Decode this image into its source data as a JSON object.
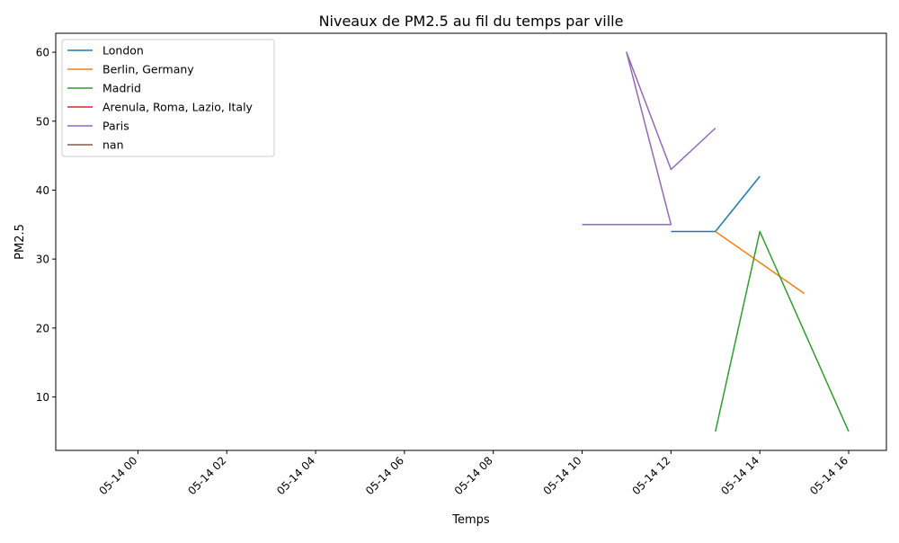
{
  "chart_data": {
    "type": "line",
    "title": "Niveaux de PM2.5 au fil du temps par ville",
    "xlabel": "Temps",
    "ylabel": "PM2.5",
    "x_unit": "hour of 05-14",
    "xlim": [
      -1.85,
      16.85
    ],
    "ylim": [
      2.25,
      62.75
    ],
    "x_ticks": [
      {
        "value": 0,
        "label": "05-14 00"
      },
      {
        "value": 2,
        "label": "05-14 02"
      },
      {
        "value": 4,
        "label": "05-14 04"
      },
      {
        "value": 6,
        "label": "05-14 06"
      },
      {
        "value": 8,
        "label": "05-14 08"
      },
      {
        "value": 10,
        "label": "05-14 10"
      },
      {
        "value": 12,
        "label": "05-14 12"
      },
      {
        "value": 14,
        "label": "05-14 14"
      },
      {
        "value": 16,
        "label": "05-14 16"
      }
    ],
    "y_ticks": [
      {
        "value": 10,
        "label": "10"
      },
      {
        "value": 20,
        "label": "20"
      },
      {
        "value": 30,
        "label": "30"
      },
      {
        "value": 40,
        "label": "40"
      },
      {
        "value": 50,
        "label": "50"
      },
      {
        "value": 60,
        "label": "60"
      }
    ],
    "grid": false,
    "legend_position": "top-left",
    "series": [
      {
        "name": "London",
        "color": "#1f77b4",
        "points": [
          [
            12,
            34
          ],
          [
            13,
            34
          ],
          [
            14,
            42
          ]
        ]
      },
      {
        "name": "Berlin, Germany",
        "color": "#ff7f0e",
        "points": [
          [
            13,
            34
          ],
          [
            15,
            25
          ]
        ]
      },
      {
        "name": "Madrid",
        "color": "#2ca02c",
        "points": [
          [
            13,
            5
          ],
          [
            14,
            34
          ],
          [
            16,
            5
          ]
        ]
      },
      {
        "name": "Arenula, Roma, Lazio, Italy",
        "color": "#d62728",
        "points": []
      },
      {
        "name": "Paris",
        "color": "#9467bd",
        "points": [
          [
            10,
            35
          ],
          [
            12,
            35
          ],
          [
            11,
            60
          ],
          [
            12,
            43
          ],
          [
            13,
            49
          ]
        ]
      },
      {
        "name": "nan",
        "color": "#8c564b",
        "points": []
      }
    ]
  }
}
